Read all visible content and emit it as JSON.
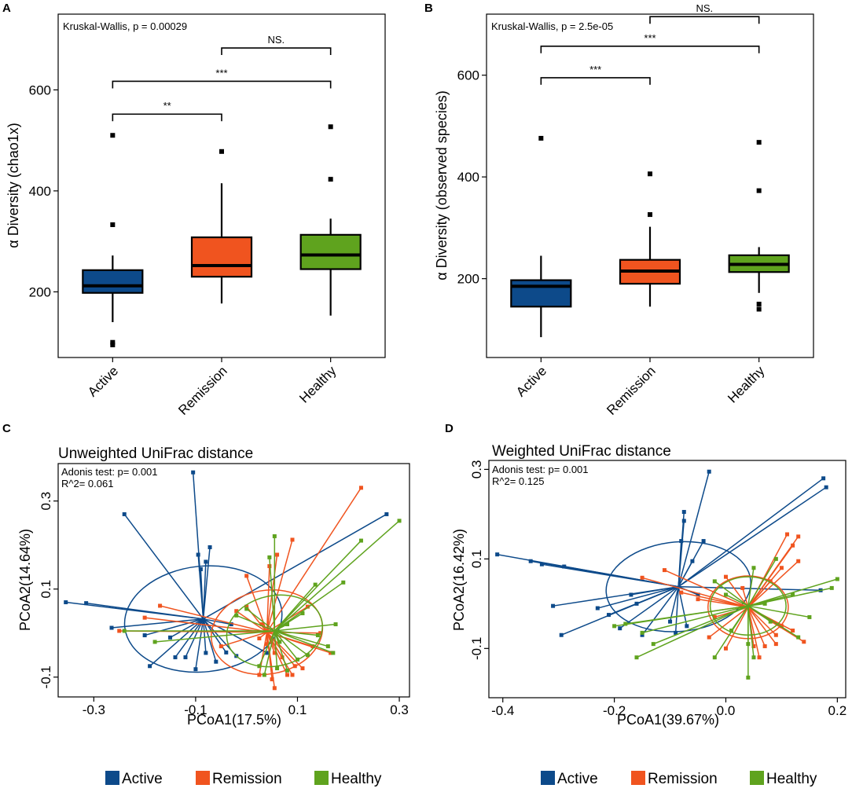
{
  "colors": {
    "Active": "#0d4a8a",
    "Remission": "#f0541f",
    "Healthy": "#5fa31e"
  },
  "chart_data": [
    {
      "panel": "A",
      "type": "boxplot",
      "categories": [
        "Active",
        "Remission",
        "Healthy"
      ],
      "ylabel": "α Diversity (chao1x)",
      "ylim": [
        70,
        750
      ],
      "yticks": [
        200,
        400,
        600
      ],
      "test_text": "Kruskal-Wallis, p = 0.00029",
      "boxes": [
        {
          "group": "Active",
          "whisker_low": 140,
          "q1": 198,
          "median": 212,
          "q3": 243,
          "whisker_high": 272,
          "outliers": [
            95,
            100,
            333,
            510
          ]
        },
        {
          "group": "Remission",
          "whisker_low": 177,
          "q1": 230,
          "median": 252,
          "q3": 308,
          "whisker_high": 415,
          "outliers": [
            478
          ]
        },
        {
          "group": "Healthy",
          "whisker_low": 153,
          "q1": 245,
          "median": 273,
          "q3": 313,
          "whisker_high": 345,
          "outliers": [
            423,
            527
          ]
        }
      ],
      "brackets": [
        {
          "from": "Active",
          "to": "Remission",
          "y": 552,
          "label": "**"
        },
        {
          "from": "Active",
          "to": "Healthy",
          "y": 617,
          "label": "***"
        },
        {
          "from": "Remission",
          "to": "Healthy",
          "y": 683,
          "label": "NS."
        }
      ]
    },
    {
      "panel": "B",
      "type": "boxplot",
      "categories": [
        "Active",
        "Remission",
        "Healthy"
      ],
      "ylabel": "α Diversity (observed species)",
      "ylim": [
        45,
        720
      ],
      "yticks": [
        200,
        400,
        600
      ],
      "test_text": "Kruskal-Wallis, p = 2.5e-05",
      "boxes": [
        {
          "group": "Active",
          "whisker_low": 85,
          "q1": 145,
          "median": 185,
          "q3": 197,
          "whisker_high": 245,
          "outliers": [
            476
          ]
        },
        {
          "group": "Remission",
          "whisker_low": 145,
          "q1": 190,
          "median": 215,
          "q3": 237,
          "whisker_high": 302,
          "outliers": [
            326,
            406
          ]
        },
        {
          "group": "Healthy",
          "whisker_low": 172,
          "q1": 213,
          "median": 228,
          "q3": 246,
          "whisker_high": 262,
          "outliers": [
            140,
            150,
            373,
            468
          ]
        }
      ],
      "brackets": [
        {
          "from": "Active",
          "to": "Remission",
          "y": 595,
          "label": "***"
        },
        {
          "from": "Active",
          "to": "Healthy",
          "y": 657,
          "label": "***"
        },
        {
          "from": "Remission",
          "to": "Healthy",
          "y": 715,
          "label": "NS."
        }
      ]
    },
    {
      "panel": "C",
      "type": "scatter",
      "title": "Unweighted UniFrac distance",
      "xlabel": "PCoA1(17.5%)",
      "ylabel": "PCoA2(14.64%)",
      "xlim": [
        -0.37,
        0.32
      ],
      "ylim": [
        -0.145,
        0.385
      ],
      "xticks": [
        -0.3,
        -0.1,
        0.1,
        0.3
      ],
      "yticks": [
        -0.1,
        0.1,
        0.3
      ],
      "annotation_lines": [
        "Adonis test: p= 0.001",
        "R^2= 0.061"
      ],
      "groups": [
        {
          "name": "Active",
          "centroid": [
            -0.085,
            0.032
          ],
          "ellipse": {
            "rx": 0.155,
            "ry": 0.12,
            "angle": 6
          },
          "points": [
            [
              -0.355,
              0.07
            ],
            [
              -0.315,
              0.068
            ],
            [
              -0.265,
              0.012
            ],
            [
              -0.24,
              0.27
            ],
            [
              -0.105,
              0.365
            ],
            [
              -0.095,
              0.178
            ],
            [
              -0.09,
              0.145
            ],
            [
              -0.08,
              0.162
            ],
            [
              -0.072,
              0.195
            ],
            [
              -0.08,
              -0.045
            ],
            [
              -0.06,
              -0.065
            ],
            [
              -0.1,
              -0.082
            ],
            [
              -0.14,
              -0.055
            ],
            [
              -0.19,
              -0.075
            ],
            [
              -0.12,
              -0.055
            ],
            [
              -0.04,
              -0.044
            ],
            [
              -0.02,
              -0.052
            ],
            [
              0.04,
              -0.045
            ],
            [
              0.275,
              0.27
            ],
            [
              -0.15,
              -0.01
            ],
            [
              -0.2,
              -0.005
            ],
            [
              -0.03,
              0.02
            ]
          ]
        },
        {
          "name": "Remission",
          "centroid": [
            0.04,
            0.002
          ],
          "ellipse": {
            "rx": 0.11,
            "ry": 0.095,
            "angle": 10
          },
          "points": [
            [
              0.225,
              0.33
            ],
            [
              0.09,
              0.212
            ],
            [
              0.06,
              0.178
            ],
            [
              0.045,
              0.152
            ],
            [
              0.0,
              0.13
            ],
            [
              -0.17,
              0.062
            ],
            [
              -0.2,
              0.035
            ],
            [
              -0.25,
              0.005
            ],
            [
              0.025,
              -0.012
            ],
            [
              0.04,
              -0.025
            ],
            [
              0.055,
              -0.045
            ],
            [
              0.07,
              -0.055
            ],
            [
              0.095,
              -0.075
            ],
            [
              0.11,
              -0.08
            ],
            [
              0.025,
              -0.095
            ],
            [
              0.05,
              -0.105
            ],
            [
              0.08,
              -0.095
            ],
            [
              0.055,
              -0.125
            ],
            [
              0.09,
              -0.095
            ],
            [
              0.13,
              -0.03
            ],
            [
              0.165,
              -0.045
            ],
            [
              0.145,
              0.0
            ],
            [
              -0.02,
              0.05
            ],
            [
              0.0,
              0.06
            ],
            [
              0.12,
              0.06
            ],
            [
              -0.05,
              -0.03
            ],
            [
              0.03,
              0.02
            ]
          ]
        },
        {
          "name": "Healthy",
          "centroid": [
            0.055,
            0.005
          ],
          "ellipse": {
            "rx": 0.095,
            "ry": 0.08,
            "angle": 12
          },
          "points": [
            [
              0.3,
              0.255
            ],
            [
              0.225,
              0.21
            ],
            [
              0.055,
              0.22
            ],
            [
              0.045,
              0.172
            ],
            [
              0.19,
              0.115
            ],
            [
              0.135,
              0.11
            ],
            [
              -0.18,
              -0.02
            ],
            [
              -0.24,
              0.005
            ],
            [
              0.16,
              -0.03
            ],
            [
              0.17,
              -0.045
            ],
            [
              0.12,
              -0.05
            ],
            [
              0.06,
              -0.08
            ],
            [
              0.08,
              -0.085
            ],
            [
              0.1,
              -0.06
            ],
            [
              0.025,
              -0.075
            ],
            [
              0.035,
              -0.095
            ],
            [
              0.14,
              -0.005
            ],
            [
              0.175,
              0.02
            ],
            [
              0.11,
              0.045
            ],
            [
              0.0,
              0.055
            ],
            [
              -0.02,
              0.04
            ],
            [
              0.08,
              0.02
            ],
            [
              0.065,
              -0.02
            ]
          ]
        }
      ]
    },
    {
      "panel": "D",
      "type": "scatter",
      "title": "Weighted UniFrac distance",
      "xlabel": "PCoA1(39.67%)",
      "ylabel": "PCoA2(16.42%)",
      "xlim": [
        -0.425,
        0.215
      ],
      "ylim": [
        -0.21,
        0.32
      ],
      "xticks": [
        -0.4,
        -0.2,
        0.0,
        0.2
      ],
      "yticks": [
        -0.1,
        0.1,
        0.3
      ],
      "annotation_lines": [
        "Adonis test: p= 0.001",
        "R^2= 0.125"
      ],
      "groups": [
        {
          "name": "Active",
          "centroid": [
            -0.085,
            0.038
          ],
          "ellipse": {
            "rx": 0.13,
            "ry": 0.1,
            "angle": 5
          },
          "points": [
            [
              -0.41,
              0.11
            ],
            [
              -0.35,
              0.095
            ],
            [
              -0.33,
              0.088
            ],
            [
              -0.29,
              0.083
            ],
            [
              -0.31,
              -0.005
            ],
            [
              -0.23,
              -0.01
            ],
            [
              -0.21,
              -0.025
            ],
            [
              -0.17,
              0.02
            ],
            [
              -0.16,
              0.0
            ],
            [
              -0.19,
              -0.055
            ],
            [
              -0.295,
              -0.07
            ],
            [
              -0.15,
              -0.07
            ],
            [
              -0.1,
              -0.04
            ],
            [
              -0.09,
              -0.065
            ],
            [
              -0.07,
              -0.05
            ],
            [
              -0.08,
              0.14
            ],
            [
              -0.06,
              0.095
            ],
            [
              -0.04,
              0.14
            ],
            [
              -0.075,
              0.205
            ],
            [
              -0.075,
              0.185
            ],
            [
              -0.03,
              0.295
            ],
            [
              0.175,
              0.28
            ],
            [
              0.18,
              0.26
            ],
            [
              -0.05,
              0.02
            ],
            [
              0.17,
              0.03
            ]
          ]
        },
        {
          "name": "Remission",
          "centroid": [
            0.04,
            -0.008
          ],
          "ellipse": {
            "rx": 0.072,
            "ry": 0.07,
            "angle": 0
          },
          "points": [
            [
              0.11,
              0.155
            ],
            [
              0.13,
              0.15
            ],
            [
              0.12,
              0.13
            ],
            [
              0.13,
              0.095
            ],
            [
              0.1,
              0.08
            ],
            [
              -0.15,
              0.058
            ],
            [
              -0.11,
              0.075
            ],
            [
              -0.08,
              0.025
            ],
            [
              0.1,
              -0.05
            ],
            [
              0.09,
              -0.07
            ],
            [
              0.09,
              -0.09
            ],
            [
              0.12,
              -0.06
            ],
            [
              0.14,
              -0.085
            ],
            [
              0.07,
              -0.095
            ],
            [
              0.05,
              -0.095
            ],
            [
              0.0,
              -0.1
            ],
            [
              -0.03,
              -0.075
            ],
            [
              -0.05,
              0.01
            ],
            [
              0.0,
              0.06
            ],
            [
              0.03,
              0.035
            ],
            [
              0.06,
              -0.12
            ],
            [
              -0.02,
              -0.03
            ],
            [
              0.08,
              0.05
            ]
          ]
        },
        {
          "name": "Healthy",
          "centroid": [
            0.04,
            -0.005
          ],
          "ellipse": {
            "rx": 0.068,
            "ry": 0.065,
            "angle": 0
          },
          "points": [
            [
              0.2,
              0.055
            ],
            [
              0.19,
              0.035
            ],
            [
              0.09,
              0.1
            ],
            [
              -0.15,
              -0.065
            ],
            [
              -0.18,
              -0.045
            ],
            [
              -0.2,
              -0.05
            ],
            [
              -0.16,
              -0.12
            ],
            [
              -0.13,
              -0.09
            ],
            [
              -0.02,
              -0.12
            ],
            [
              0.04,
              -0.09
            ],
            [
              0.04,
              -0.165
            ],
            [
              0.05,
              -0.12
            ],
            [
              0.08,
              -0.04
            ],
            [
              0.13,
              -0.075
            ],
            [
              0.15,
              -0.03
            ],
            [
              0.0,
              0.02
            ],
            [
              -0.02,
              0.05
            ],
            [
              0.05,
              0.08
            ],
            [
              0.12,
              0.02
            ],
            [
              0.01,
              -0.06
            ],
            [
              0.07,
              0.0
            ]
          ]
        }
      ]
    }
  ],
  "legend": [
    {
      "label": "Active",
      "color": "#0d4a8a"
    },
    {
      "label": "Remission",
      "color": "#f0541f"
    },
    {
      "label": "Healthy",
      "color": "#5fa31e"
    }
  ]
}
